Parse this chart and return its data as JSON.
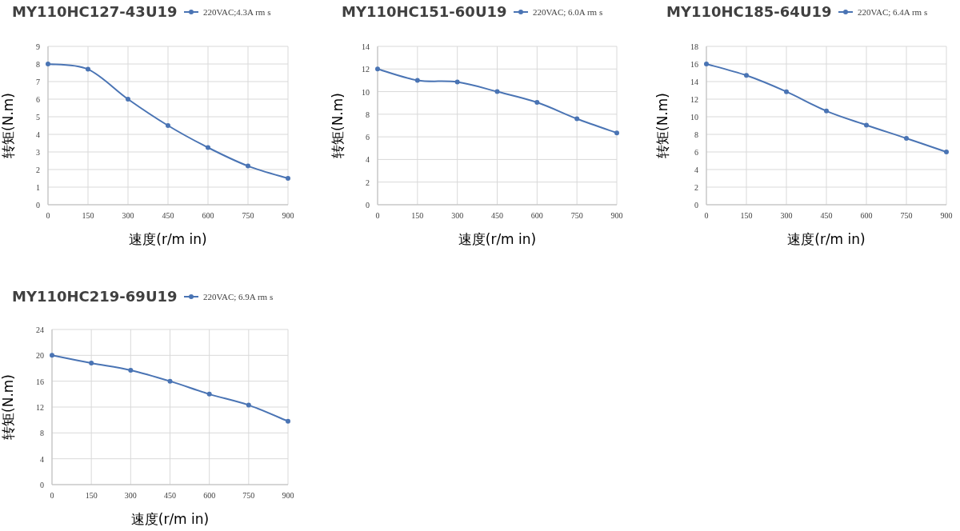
{
  "chart_data": [
    {
      "type": "line",
      "title": "MY110HC127-43U19",
      "xlabel": "速度(r/m in)",
      "ylabel": "转矩(N.m)",
      "x": [
        0,
        150,
        300,
        450,
        600,
        750,
        900
      ],
      "xlim": [
        0,
        900
      ],
      "xticks": [
        0,
        150,
        300,
        450,
        600,
        750,
        900
      ],
      "ylim": [
        0,
        9
      ],
      "yticks": [
        0,
        1,
        2,
        3,
        4,
        5,
        6,
        7,
        8,
        9
      ],
      "grid": true,
      "legend": "top right",
      "marker": "circle",
      "series": [
        {
          "name": "220VAC;4.3A rm s",
          "color": "#4a74b4",
          "values": [
            8,
            7.7,
            6,
            4.5,
            3.25,
            2.2,
            1.5
          ]
        }
      ]
    },
    {
      "type": "line",
      "title": "MY110HC151-60U19",
      "xlabel": "速度(r/m in)",
      "ylabel": "转矩(N.m)",
      "x": [
        0,
        150,
        300,
        450,
        600,
        750,
        900
      ],
      "xlim": [
        0,
        900
      ],
      "xticks": [
        0,
        150,
        300,
        450,
        600,
        750,
        900
      ],
      "ylim": [
        0,
        14
      ],
      "yticks": [
        0,
        2,
        4,
        6,
        8,
        10,
        12,
        14
      ],
      "grid": true,
      "legend": "top right",
      "marker": "circle",
      "series": [
        {
          "name": "220VAC; 6.0A rm s",
          "color": "#4a74b4",
          "values": [
            12,
            11,
            10.85,
            10,
            9.05,
            7.6,
            6.35
          ]
        }
      ]
    },
    {
      "type": "line",
      "title": "MY110HC185-64U19",
      "xlabel": "速度(r/m in)",
      "ylabel": "转矩(N.m)",
      "x": [
        0,
        150,
        300,
        450,
        600,
        750,
        900
      ],
      "xlim": [
        0,
        900
      ],
      "xticks": [
        0,
        150,
        300,
        450,
        600,
        750,
        900
      ],
      "ylim": [
        0,
        18
      ],
      "yticks": [
        0,
        2,
        4,
        6,
        8,
        10,
        12,
        14,
        16,
        18
      ],
      "grid": true,
      "legend": "top right",
      "marker": "circle",
      "series": [
        {
          "name": "220VAC; 6.4A rm s",
          "color": "#4a74b4",
          "values": [
            16,
            14.7,
            12.85,
            10.65,
            9.05,
            7.55,
            6
          ]
        }
      ]
    },
    {
      "type": "line",
      "title": "MY110HC219-69U19",
      "xlabel": "速度(r/m in)",
      "ylabel": "转矩(N.m)",
      "x": [
        0,
        150,
        300,
        450,
        600,
        750,
        900
      ],
      "xlim": [
        0,
        900
      ],
      "xticks": [
        0,
        150,
        300,
        450,
        600,
        750,
        900
      ],
      "ylim": [
        0,
        24
      ],
      "yticks": [
        0,
        4,
        8,
        12,
        16,
        20,
        24
      ],
      "grid": true,
      "legend": "top right",
      "marker": "circle",
      "series": [
        {
          "name": "220VAC; 6.9A rm s",
          "color": "#4a74b4",
          "values": [
            20,
            18.8,
            17.7,
            16,
            14,
            12.3,
            9.8
          ]
        }
      ]
    }
  ]
}
